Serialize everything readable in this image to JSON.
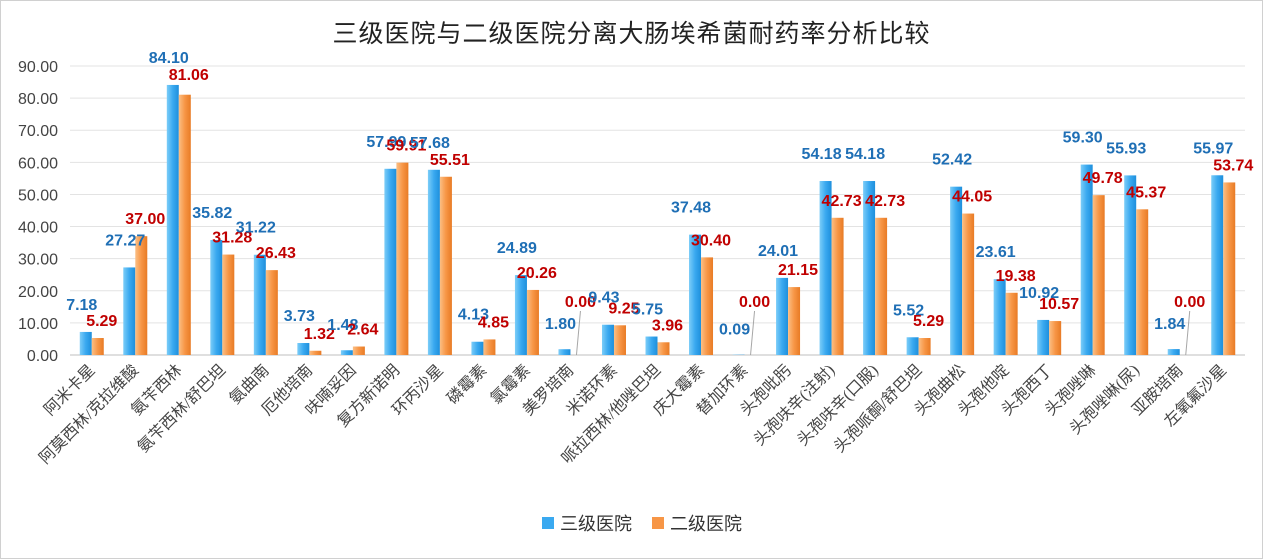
{
  "chart_data": {
    "type": "bar",
    "title": "三级医院与二级医院分离大肠埃希菌耐药率分析比较",
    "categories": [
      "阿米卡星",
      "阿莫西林/克拉维酸",
      "氨苄西林",
      "氨苄西林/舒巴坦",
      "氨曲南",
      "厄他培南",
      "呋喃妥因",
      "复方新诺明",
      "环丙沙星",
      "磷霉素",
      "氯霉素",
      "美罗培南",
      "米诺环素",
      "哌拉西林/他唑巴坦",
      "庆大霉素",
      "替加环素",
      "头孢吡肟",
      "头孢呋辛(注射)",
      "头孢呋辛(口服)",
      "头孢哌酮/舒巴坦",
      "头孢曲松",
      "头孢他啶",
      "头孢西丁",
      "头孢唑啉",
      "头孢唑啉(尿)",
      "亚胺培南",
      "左氧氟沙星"
    ],
    "series": [
      {
        "name": "三级医院",
        "color": "#3aa9f0",
        "label_color": "#1f6fb5",
        "values": [
          7.18,
          27.27,
          84.1,
          35.82,
          31.22,
          3.73,
          1.48,
          57.99,
          57.68,
          4.13,
          24.89,
          1.8,
          9.43,
          5.75,
          37.48,
          0.09,
          24.01,
          54.18,
          54.18,
          5.52,
          52.42,
          23.61,
          10.92,
          59.3,
          55.93,
          1.84,
          55.97
        ],
        "labels": [
          "7.18",
          "27.27",
          "84.10",
          "35.82",
          "31.22",
          "3.73",
          "1.48",
          "57.99",
          "57.68",
          "4.13",
          "24.89",
          "1.80",
          "9.43",
          "5.75",
          "37.48",
          "0.09",
          "24.01",
          "54.18",
          "54.18",
          "5.52",
          "52.42",
          "23.61",
          "10.92",
          "59.30",
          "55.93",
          "1.84",
          "55.97"
        ]
      },
      {
        "name": "二级医院",
        "color": "#f79646",
        "label_color": "#c00000",
        "values": [
          5.29,
          37.0,
          81.06,
          31.28,
          26.43,
          1.32,
          2.64,
          59.91,
          55.51,
          4.85,
          20.26,
          0.0,
          9.25,
          3.96,
          30.4,
          0.0,
          21.15,
          42.73,
          42.73,
          5.29,
          44.05,
          19.38,
          10.57,
          49.78,
          45.37,
          0.0,
          53.74
        ],
        "labels": [
          "5.29",
          "37.00",
          "81.06",
          "31.28",
          "26.43",
          "1.32",
          "2.64",
          "59.91",
          "55.51",
          "4.85",
          "20.26",
          "0.00",
          "9.25",
          "3.96",
          "30.40",
          "0.00",
          "21.15",
          "42.73",
          "42.73",
          "5.29",
          "44.05",
          "19.38",
          "10.57",
          "49.78",
          "45.37",
          "0.00",
          "53.74"
        ]
      }
    ],
    "y_ticks": [
      "0.00",
      "10.00",
      "20.00",
      "30.00",
      "40.00",
      "50.00",
      "60.00",
      "70.00",
      "80.00",
      "90.00"
    ],
    "ylim": [
      0,
      90
    ],
    "grid": true,
    "legend_position": "bottom"
  }
}
